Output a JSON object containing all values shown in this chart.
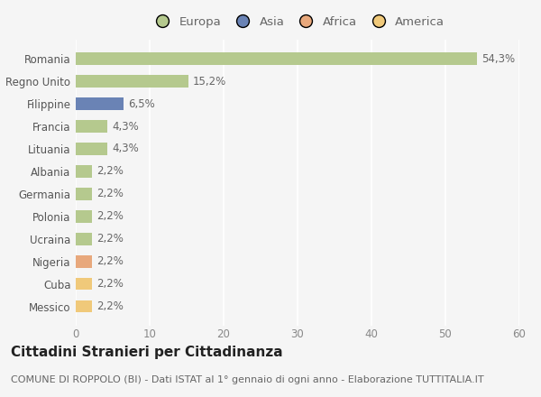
{
  "categories": [
    "Romania",
    "Regno Unito",
    "Filippine",
    "Francia",
    "Lituania",
    "Albania",
    "Germania",
    "Polonia",
    "Ucraina",
    "Nigeria",
    "Cuba",
    "Messico"
  ],
  "values": [
    54.3,
    15.2,
    6.5,
    4.3,
    4.3,
    2.2,
    2.2,
    2.2,
    2.2,
    2.2,
    2.2,
    2.2
  ],
  "labels": [
    "54,3%",
    "15,2%",
    "6,5%",
    "4,3%",
    "4,3%",
    "2,2%",
    "2,2%",
    "2,2%",
    "2,2%",
    "2,2%",
    "2,2%",
    "2,2%"
  ],
  "colors": [
    "#b5c98e",
    "#b5c98e",
    "#6a83b5",
    "#b5c98e",
    "#b5c98e",
    "#b5c98e",
    "#b5c98e",
    "#b5c98e",
    "#b5c98e",
    "#e8a87c",
    "#f0c97a",
    "#f0c97a"
  ],
  "legend_labels": [
    "Europa",
    "Asia",
    "Africa",
    "America"
  ],
  "legend_colors": [
    "#b5c98e",
    "#6a83b5",
    "#e8a87c",
    "#f0c97a"
  ],
  "title": "Cittadini Stranieri per Cittadinanza",
  "subtitle": "COMUNE DI ROPPOLO (BI) - Dati ISTAT al 1° gennaio di ogni anno - Elaborazione TUTTITALIA.IT",
  "xlim": [
    0,
    60
  ],
  "xticks": [
    0,
    10,
    20,
    30,
    40,
    50,
    60
  ],
  "background_color": "#f5f5f5",
  "plot_bg_color": "#f5f5f5",
  "grid_color": "#ffffff",
  "bar_height": 0.55,
  "title_fontsize": 11,
  "subtitle_fontsize": 8,
  "label_fontsize": 8.5,
  "tick_fontsize": 8.5,
  "legend_fontsize": 9.5
}
